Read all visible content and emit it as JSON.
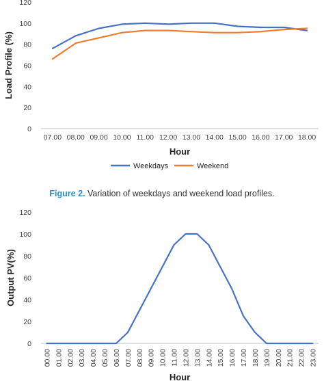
{
  "caption": {
    "label": "Figure 2.",
    "text": "Variation of weekdays and weekend load profiles."
  },
  "colors": {
    "weekdays": "#4472c4",
    "weekend": "#ed7d31",
    "pv": "#4472c4",
    "axis": "#bfbfbf"
  },
  "chart_data": [
    {
      "type": "line",
      "xlabel": "Hour",
      "ylabel": "Load Profile (%)",
      "ylim": [
        0,
        120
      ],
      "yticks": [
        0,
        20,
        40,
        60,
        80,
        100,
        120
      ],
      "categories": [
        "07.00",
        "08.00",
        "09.00",
        "10.00",
        "11.00",
        "12.00",
        "13.00",
        "14.00",
        "15.00",
        "16.00",
        "17.00",
        "18.00"
      ],
      "legend_position": "bottom",
      "grid": false,
      "series": [
        {
          "name": "Weekdays",
          "color": "#4472c4",
          "values": [
            76,
            88,
            95,
            99,
            100,
            99,
            100,
            100,
            97,
            96,
            96,
            93
          ]
        },
        {
          "name": "Weekend",
          "color": "#ed7d31",
          "values": [
            66,
            81,
            86,
            91,
            93,
            93,
            92,
            91,
            91,
            92,
            94,
            95
          ]
        }
      ]
    },
    {
      "type": "line",
      "xlabel": "Hour",
      "ylabel": "Output PV(%)",
      "ylim": [
        0,
        120
      ],
      "yticks": [
        0,
        20,
        40,
        60,
        80,
        100,
        120
      ],
      "categories": [
        "00.00",
        "01.00",
        "02.00",
        "03.00",
        "04.00",
        "05.00",
        "06.00",
        "07.00",
        "08.00",
        "09.00",
        "10.00",
        "11.00",
        "12.00",
        "13.00",
        "14.00",
        "15.00",
        "16.00",
        "17.00",
        "18.00",
        "19.00",
        "20.00",
        "21.00",
        "22.00",
        "23.00"
      ],
      "grid": false,
      "series": [
        {
          "color": "#4472c4",
          "values": [
            0,
            0,
            0,
            0,
            0,
            0,
            0,
            10,
            30,
            50,
            70,
            90,
            100,
            100,
            90,
            70,
            50,
            25,
            10,
            0,
            0,
            0,
            0,
            0
          ]
        }
      ]
    }
  ]
}
